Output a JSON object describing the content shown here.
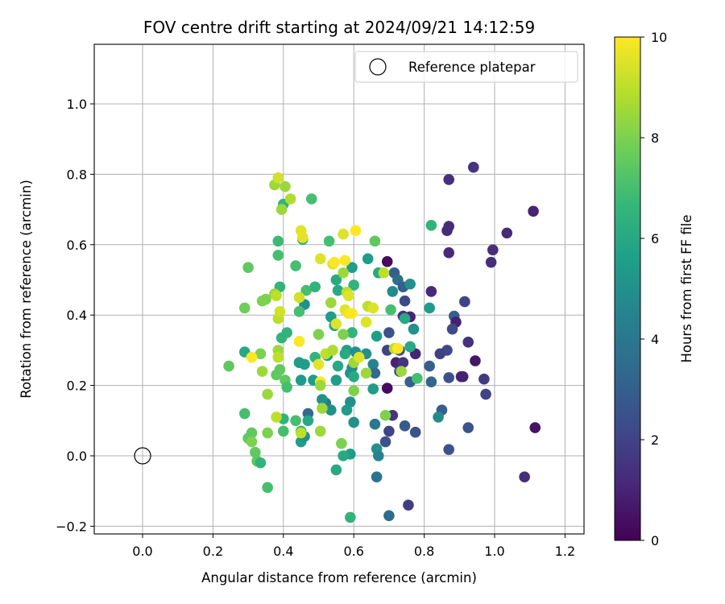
{
  "chart_data": {
    "type": "scatter",
    "title": "FOV centre drift starting at 2024/09/21 14:12:59",
    "xlabel": "Angular distance from reference (arcmin)",
    "ylabel": "Rotation from reference (arcmin)",
    "xlim": [
      -0.14,
      1.26
    ],
    "ylim": [
      -0.225,
      1.17
    ],
    "xticks": [
      0.0,
      0.2,
      0.4,
      0.6,
      0.8,
      1.0,
      1.2
    ],
    "xtick_labels": [
      "0.0",
      "0.2",
      "0.4",
      "0.6",
      "0.8",
      "1.0",
      "1.2"
    ],
    "yticks": [
      -0.2,
      0.0,
      0.2,
      0.4,
      0.6,
      0.8,
      1.0
    ],
    "ytick_labels": [
      "−0.2",
      "0.0",
      "0.2",
      "0.4",
      "0.6",
      "0.8",
      "1.0"
    ],
    "grid": true,
    "legend": {
      "position": "top-right",
      "entries": [
        {
          "label": "Reference platepar",
          "marker": "open-circle"
        }
      ]
    },
    "reference_point": {
      "x": 0.0,
      "y": 0.0,
      "label": "Reference platepar"
    },
    "colorbar": {
      "label": "Hours from first FF file",
      "range": [
        0,
        10
      ],
      "ticks": [
        0,
        2,
        4,
        6,
        8,
        10
      ],
      "tick_labels": [
        "0",
        "2",
        "4",
        "6",
        "8",
        "10"
      ],
      "colormap": "viridis",
      "colors": [
        "#440154",
        "#482878",
        "#3e4a89",
        "#31688e",
        "#26828e",
        "#1f9e89",
        "#35b779",
        "#6ece58",
        "#b5de2b",
        "#fde725"
      ]
    },
    "series": [
      {
        "name": "FOV centre",
        "points": [
          [
            0.94,
            0.82,
            1.5
          ],
          [
            1.11,
            0.695,
            1.0
          ],
          [
            1.035,
            0.633,
            1.2
          ],
          [
            0.995,
            0.585,
            1.3
          ],
          [
            0.99,
            0.55,
            1.3
          ],
          [
            0.87,
            0.785,
            1.4
          ],
          [
            0.87,
            0.652,
            1.3
          ],
          [
            0.865,
            0.64,
            1.2
          ],
          [
            0.87,
            0.577,
            1.2
          ],
          [
            0.82,
            0.467,
            1.2
          ],
          [
            0.915,
            0.438,
            2.0
          ],
          [
            0.885,
            0.397,
            3.0
          ],
          [
            0.89,
            0.38,
            0.9
          ],
          [
            0.88,
            0.36,
            2.3
          ],
          [
            0.925,
            0.323,
            1.4
          ],
          [
            0.865,
            0.3,
            2.2
          ],
          [
            0.845,
            0.29,
            1.9
          ],
          [
            0.945,
            0.27,
            0.6
          ],
          [
            0.905,
            0.225,
            1.0
          ],
          [
            0.91,
            0.225,
            0.9
          ],
          [
            0.97,
            0.218,
            1.7
          ],
          [
            0.87,
            0.222,
            2.5
          ],
          [
            0.975,
            0.175,
            2.0
          ],
          [
            0.85,
            0.13,
            3.0
          ],
          [
            0.84,
            0.11,
            4.8
          ],
          [
            0.925,
            0.08,
            2.6
          ],
          [
            1.115,
            0.08,
            0.5
          ],
          [
            0.87,
            0.018,
            2.5
          ],
          [
            1.085,
            -0.06,
            1.3
          ],
          [
            0.755,
            -0.14,
            1.8
          ],
          [
            0.695,
            0.552,
            0.3
          ],
          [
            0.715,
            0.52,
            3.0
          ],
          [
            0.725,
            0.5,
            3.5
          ],
          [
            0.74,
            0.48,
            3.0
          ],
          [
            0.76,
            0.488,
            5.0
          ],
          [
            0.71,
            0.467,
            4.8
          ],
          [
            0.745,
            0.44,
            2.2
          ],
          [
            0.74,
            0.397,
            1.5
          ],
          [
            0.76,
            0.395,
            1.0
          ],
          [
            0.7,
            0.35,
            2.5
          ],
          [
            0.745,
            0.39,
            6.0
          ],
          [
            0.695,
            0.3,
            2.0
          ],
          [
            0.73,
            0.3,
            2.5
          ],
          [
            0.76,
            0.31,
            5.0
          ],
          [
            0.775,
            0.29,
            1.0
          ],
          [
            0.815,
            0.255,
            3.0
          ],
          [
            0.72,
            0.265,
            1.0
          ],
          [
            0.74,
            0.265,
            1.5
          ],
          [
            0.73,
            0.24,
            2.0
          ],
          [
            0.76,
            0.21,
            3.0
          ],
          [
            0.82,
            0.21,
            3.3
          ],
          [
            0.695,
            0.192,
            0.3
          ],
          [
            0.71,
            0.115,
            1.5
          ],
          [
            0.745,
            0.085,
            2.8
          ],
          [
            0.7,
            0.07,
            2.0
          ],
          [
            0.775,
            0.067,
            2.5
          ],
          [
            0.69,
            0.04,
            2.5
          ],
          [
            0.7,
            -0.17,
            3.5
          ],
          [
            0.665,
            -0.06,
            3.8
          ],
          [
            0.705,
            0.415,
            7.0
          ],
          [
            0.77,
            0.36,
            5.0
          ],
          [
            0.76,
            0.31,
            6.0
          ],
          [
            0.78,
            0.22,
            7.0
          ],
          [
            0.815,
            0.42,
            5.5
          ],
          [
            0.82,
            0.655,
            6.5
          ],
          [
            0.64,
            0.56,
            5.5
          ],
          [
            0.67,
            0.52,
            6.0
          ],
          [
            0.665,
            0.34,
            5.5
          ],
          [
            0.635,
            0.29,
            5.0
          ],
          [
            0.655,
            0.26,
            4.5
          ],
          [
            0.66,
            0.235,
            3.5
          ],
          [
            0.655,
            0.19,
            5.5
          ],
          [
            0.66,
            0.09,
            4.0
          ],
          [
            0.665,
            0.02,
            5.0
          ],
          [
            0.67,
            0.0,
            4.5
          ],
          [
            0.59,
            0.153,
            5.0
          ],
          [
            0.6,
            0.095,
            5.0
          ],
          [
            0.58,
            0.13,
            5.5
          ],
          [
            0.59,
            0.005,
            5.5
          ],
          [
            0.57,
            0.0,
            6.0
          ],
          [
            0.55,
            -0.04,
            6.0
          ],
          [
            0.59,
            -0.175,
            6.5
          ],
          [
            0.595,
            0.535,
            5.5
          ],
          [
            0.6,
            0.485,
            6.5
          ],
          [
            0.55,
            0.5,
            6.0
          ],
          [
            0.555,
            0.47,
            6.0
          ],
          [
            0.535,
            0.395,
            5.5
          ],
          [
            0.545,
            0.37,
            5.8
          ],
          [
            0.58,
            0.3,
            5.5
          ],
          [
            0.595,
            0.35,
            6.5
          ],
          [
            0.575,
            0.29,
            6.0
          ],
          [
            0.605,
            0.295,
            5.0
          ],
          [
            0.555,
            0.255,
            6.0
          ],
          [
            0.55,
            0.215,
            5.5
          ],
          [
            0.59,
            0.235,
            5.0
          ],
          [
            0.595,
            0.25,
            5.0
          ],
          [
            0.6,
            0.225,
            6.0
          ],
          [
            0.52,
            0.15,
            4.0
          ],
          [
            0.51,
            0.16,
            5.0
          ],
          [
            0.535,
            0.13,
            5.0
          ],
          [
            0.525,
            0.285,
            5.5
          ],
          [
            0.46,
            0.43,
            5.0
          ],
          [
            0.465,
            0.47,
            7.0
          ],
          [
            0.49,
            0.48,
            6.5
          ],
          [
            0.49,
            0.28,
            6.5
          ],
          [
            0.445,
            0.265,
            5.5
          ],
          [
            0.45,
            0.215,
            5.5
          ],
          [
            0.46,
            0.26,
            5.5
          ],
          [
            0.485,
            0.215,
            5.5
          ],
          [
            0.47,
            0.12,
            3.5
          ],
          [
            0.47,
            0.1,
            6.0
          ],
          [
            0.45,
            0.07,
            6.5
          ],
          [
            0.45,
            0.04,
            5.5
          ],
          [
            0.46,
            0.055,
            5.0
          ],
          [
            0.41,
            0.35,
            6.5
          ],
          [
            0.395,
            0.335,
            6.5
          ],
          [
            0.39,
            0.48,
            6.5
          ],
          [
            0.385,
            0.61,
            6.8
          ],
          [
            0.4,
            0.715,
            6.5
          ],
          [
            0.445,
            0.41,
            7.0
          ],
          [
            0.455,
            0.615,
            6.0
          ],
          [
            0.53,
            0.61,
            7.0
          ],
          [
            0.48,
            0.73,
            7.0
          ],
          [
            0.385,
            0.57,
            7.0
          ],
          [
            0.3,
            0.535,
            7.5
          ],
          [
            0.29,
            0.42,
            7.8
          ],
          [
            0.29,
            0.295,
            6.0
          ],
          [
            0.335,
            0.29,
            8.0
          ],
          [
            0.39,
            0.245,
            7.5
          ],
          [
            0.405,
            0.215,
            7.5
          ],
          [
            0.38,
            0.23,
            7.5
          ],
          [
            0.41,
            0.195,
            7.0
          ],
          [
            0.29,
            0.12,
            7.0
          ],
          [
            0.3,
            0.05,
            7.5
          ],
          [
            0.31,
            0.065,
            7.5
          ],
          [
            0.31,
            0.04,
            8.0
          ],
          [
            0.32,
            0.01,
            7.5
          ],
          [
            0.325,
            -0.015,
            7.5
          ],
          [
            0.335,
            -0.02,
            6.5
          ],
          [
            0.355,
            -0.09,
            7.0
          ],
          [
            0.4,
            0.105,
            6.5
          ],
          [
            0.4,
            0.07,
            7.0
          ],
          [
            0.435,
            0.1,
            7.0
          ],
          [
            0.355,
            0.065,
            8.0
          ],
          [
            0.245,
            0.255,
            7.5
          ],
          [
            0.355,
            0.175,
            8.5
          ],
          [
            0.34,
            0.24,
            8.5
          ],
          [
            0.375,
            0.46,
            8.5
          ],
          [
            0.38,
            0.455,
            9.0
          ],
          [
            0.435,
            0.54,
            7.0
          ],
          [
            0.385,
            0.39,
            9.0
          ],
          [
            0.39,
            0.41,
            9.3
          ],
          [
            0.385,
            0.3,
            8.5
          ],
          [
            0.375,
            0.77,
            8.5
          ],
          [
            0.385,
            0.79,
            9.3
          ],
          [
            0.405,
            0.765,
            8.5
          ],
          [
            0.42,
            0.73,
            8.8
          ],
          [
            0.34,
            0.44,
            8.0
          ],
          [
            0.35,
            0.445,
            8.0
          ],
          [
            0.31,
            0.28,
            10.0
          ],
          [
            0.445,
            0.325,
            10.0
          ],
          [
            0.45,
            0.64,
            9.6
          ],
          [
            0.455,
            0.62,
            9.6
          ],
          [
            0.445,
            0.45,
            9.3
          ],
          [
            0.5,
            0.345,
            8.0
          ],
          [
            0.5,
            0.26,
            9.6
          ],
          [
            0.505,
            0.21,
            10.0
          ],
          [
            0.505,
            0.2,
            8.5
          ],
          [
            0.505,
            0.56,
            9.5
          ],
          [
            0.535,
            0.435,
            8.5
          ],
          [
            0.54,
            0.545,
            9.5
          ],
          [
            0.545,
            0.55,
            10.0
          ],
          [
            0.55,
            0.375,
            9.5
          ],
          [
            0.52,
            0.29,
            9.0
          ],
          [
            0.54,
            0.3,
            8.8
          ],
          [
            0.51,
            0.135,
            8.5
          ],
          [
            0.505,
            0.07,
            8.5
          ],
          [
            0.45,
            0.065,
            9.0
          ],
          [
            0.57,
            0.63,
            9.5
          ],
          [
            0.57,
            0.52,
            8.5
          ],
          [
            0.575,
            0.555,
            10.0
          ],
          [
            0.58,
            0.465,
            9.0
          ],
          [
            0.585,
            0.455,
            9.5
          ],
          [
            0.575,
            0.415,
            9.5
          ],
          [
            0.585,
            0.405,
            9.8
          ],
          [
            0.595,
            0.405,
            10.0
          ],
          [
            0.57,
            0.345,
            8.0
          ],
          [
            0.6,
            0.265,
            8.5
          ],
          [
            0.605,
            0.64,
            10.0
          ],
          [
            0.6,
            0.185,
            8.0
          ],
          [
            0.615,
            0.28,
            9.5
          ],
          [
            0.635,
            0.235,
            8.5
          ],
          [
            0.635,
            0.38,
            9.5
          ],
          [
            0.64,
            0.425,
            9.0
          ],
          [
            0.655,
            0.42,
            9.5
          ],
          [
            0.66,
            0.61,
            7.5
          ],
          [
            0.685,
            0.52,
            9.0
          ],
          [
            0.69,
            0.115,
            8.0
          ],
          [
            0.715,
            0.305,
            9.0
          ],
          [
            0.725,
            0.305,
            10.0
          ],
          [
            0.735,
            0.24,
            8.5
          ],
          [
            0.565,
            0.035,
            8.0
          ],
          [
            0.395,
            0.7,
            8.5
          ],
          [
            0.38,
            0.11,
            9.0
          ],
          [
            0.385,
            0.28,
            9.0
          ]
        ]
      }
    ]
  }
}
